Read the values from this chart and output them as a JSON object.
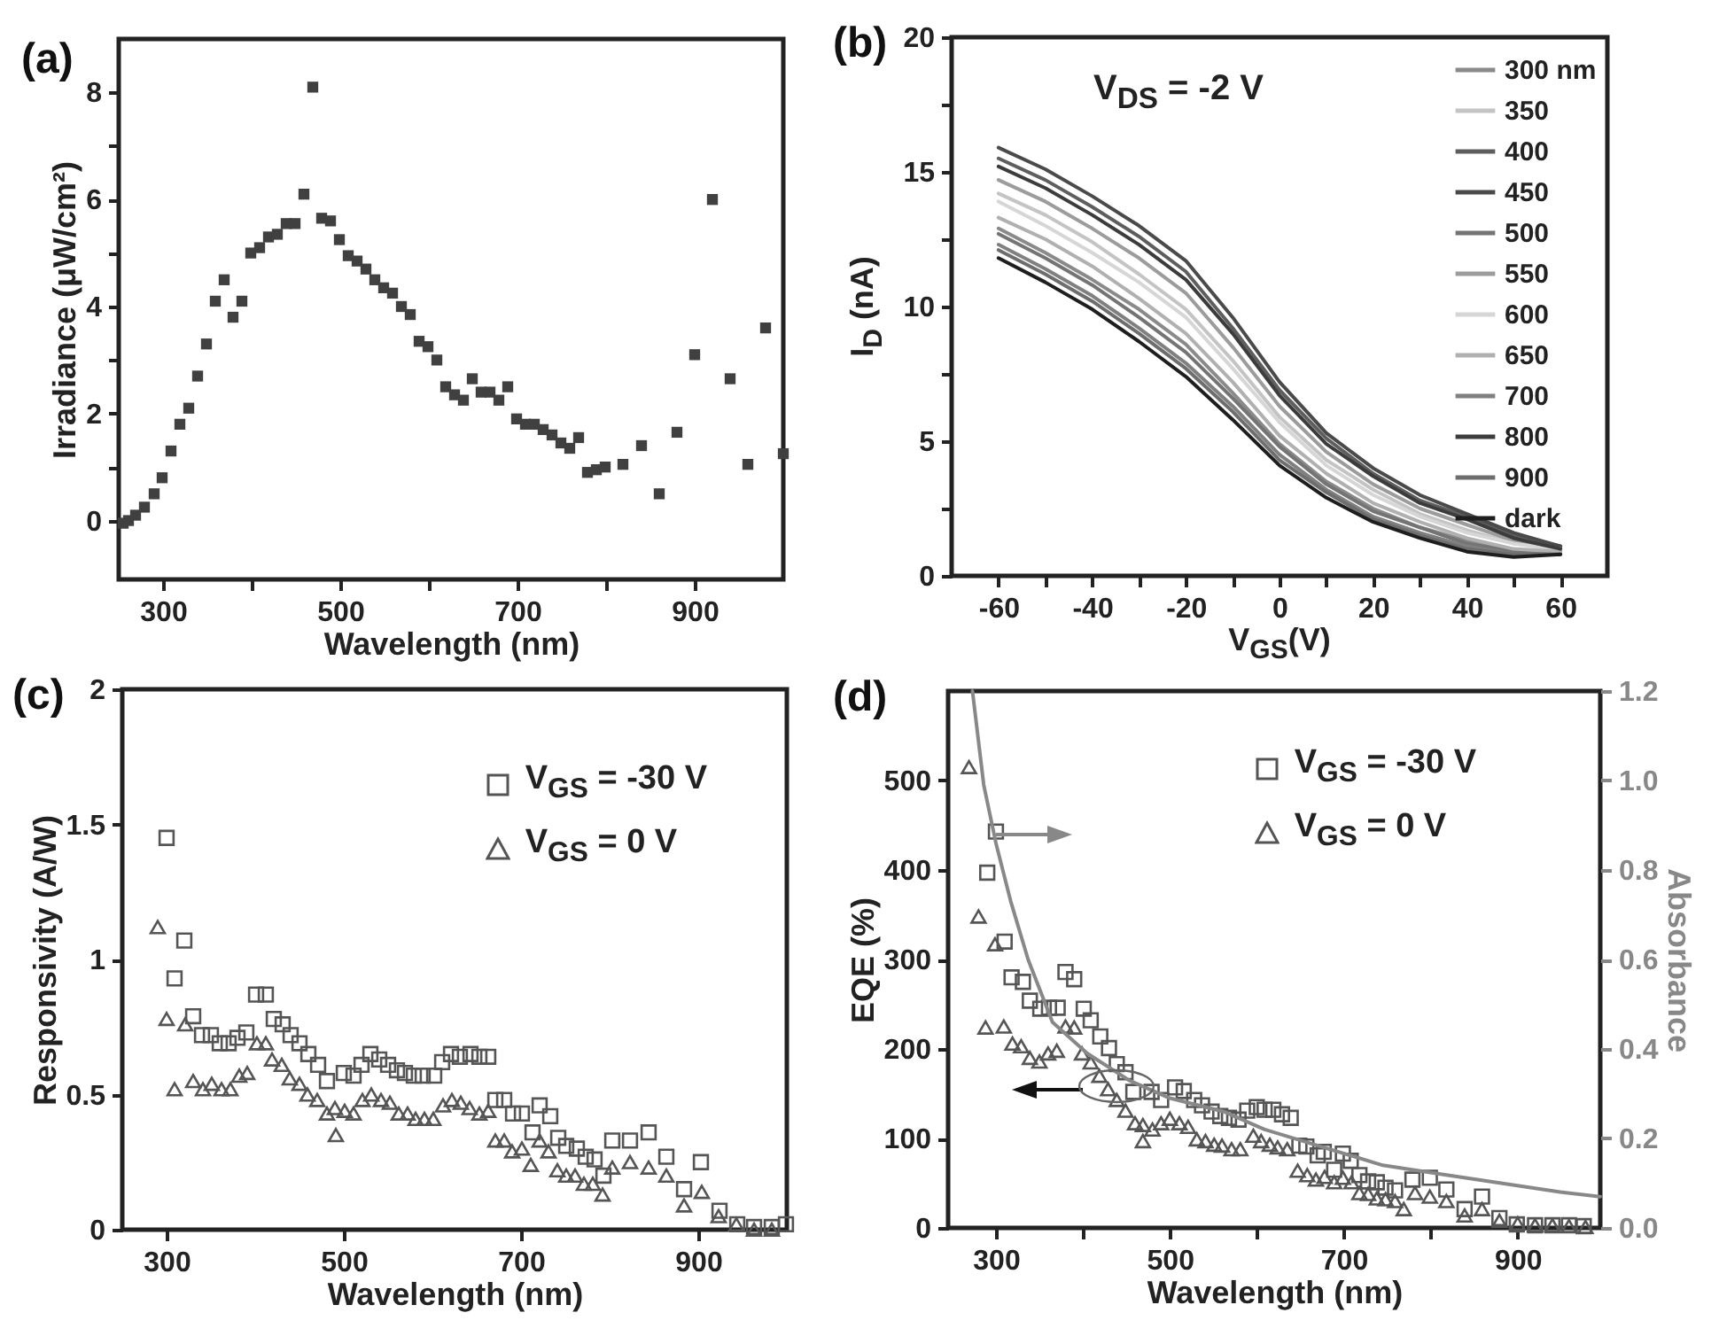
{
  "chart_data": [
    {
      "type": "scatter",
      "title": "(a)",
      "xlabel": "Wavelength (nm)",
      "ylabel": "Irradiance (μW/cm²)",
      "marker": "square",
      "color": "#404040",
      "x": [
        255,
        261,
        269,
        279,
        290,
        299,
        309,
        319,
        329,
        339,
        349,
        359,
        369,
        379,
        389,
        399,
        409,
        419,
        429,
        439,
        449,
        459,
        469,
        479,
        489,
        499,
        509,
        519,
        529,
        539,
        549,
        559,
        569,
        579,
        589,
        599,
        609,
        619,
        629,
        639,
        649,
        659,
        669,
        679,
        689,
        699,
        709,
        719,
        729,
        739,
        749,
        759,
        769,
        779,
        789,
        799,
        819,
        840,
        860,
        880,
        900,
        920,
        940,
        960,
        980,
        1000
      ],
      "values": [
        -0.05,
        0,
        0.1,
        0.25,
        0.5,
        0.8,
        1.3,
        1.8,
        2.1,
        2.7,
        3.3,
        4.1,
        4.5,
        3.8,
        4.1,
        5.0,
        5.1,
        5.3,
        5.35,
        5.55,
        5.55,
        6.1,
        8.1,
        5.65,
        5.6,
        5.25,
        4.95,
        4.85,
        4.7,
        4.5,
        4.35,
        4.25,
        4.0,
        3.85,
        3.35,
        3.25,
        3.0,
        2.5,
        2.35,
        2.25,
        2.65,
        2.4,
        2.4,
        2.25,
        2.5,
        1.9,
        1.8,
        1.8,
        1.7,
        1.6,
        1.45,
        1.35,
        1.55,
        0.9,
        0.95,
        1.0,
        1.05,
        1.4,
        0.5,
        1.65,
        3.1,
        6.0,
        2.65,
        1.05,
        3.6,
        1.25
      ],
      "xlim": [
        250,
        1000
      ],
      "xticks": [
        300,
        {
          "value": 400,
          "label": null
        },
        500,
        {
          "value": 600,
          "label": null
        },
        700,
        {
          "value": 800,
          "label": null
        },
        900
      ],
      "ylim": [
        -1.1,
        9
      ],
      "yticks": [
        0,
        {
          "value": 1,
          "label": null
        },
        2,
        {
          "value": 3,
          "label": null
        },
        4,
        {
          "value": 5,
          "label": null
        },
        6,
        {
          "value": 7,
          "label": null
        },
        8
      ]
    },
    {
      "type": "line",
      "title": "(b)",
      "xlabel": "V$_{GS}$(V)",
      "ylabel": "I$_{D}$ (nA)",
      "annotations": [
        "V$_{DS}$ = -2 V"
      ],
      "legend": "top right",
      "x": [
        -60,
        -50,
        -40,
        -30,
        -20,
        -10,
        0,
        10,
        20,
        30,
        40,
        50,
        60
      ],
      "xlim": [
        -70,
        70
      ],
      "xticks": [
        -60,
        {
          "value": -50,
          "label": null
        },
        -40,
        {
          "value": -30,
          "label": null
        },
        -20,
        {
          "value": -10,
          "label": null
        },
        0,
        {
          "value": 10,
          "label": null
        },
        20,
        {
          "value": 30,
          "label": null
        },
        40,
        {
          "value": 50,
          "label": null
        },
        60
      ],
      "ylim": [
        0,
        20
      ],
      "yticks": [
        0,
        {
          "value": 2.5,
          "label": null
        },
        5,
        {
          "value": 7.5,
          "label": null
        },
        10,
        {
          "value": 12.5,
          "label": null
        },
        15,
        {
          "value": 17.5,
          "label": null
        },
        20
      ],
      "series": [
        {
          "name": "300 nm",
          "color": "#8a8a8a",
          "values": [
            12.9,
            12.0,
            11.0,
            9.9,
            8.6,
            6.8,
            4.9,
            3.5,
            2.5,
            1.8,
            1.3,
            0.9,
            0.9
          ]
        },
        {
          "name": "350",
          "color": "#c4c4c4",
          "values": [
            14.2,
            13.4,
            12.4,
            11.2,
            9.9,
            8.0,
            5.9,
            4.3,
            3.2,
            2.3,
            1.7,
            1.2,
            1.0
          ]
        },
        {
          "name": "400",
          "color": "#5e5e5e",
          "values": [
            15.5,
            14.7,
            13.7,
            12.6,
            11.3,
            9.2,
            6.9,
            5.1,
            3.8,
            2.8,
            2.2,
            1.5,
            1.1
          ]
        },
        {
          "name": "450",
          "color": "#4a4a4a",
          "values": [
            15.9,
            15.1,
            14.1,
            13.0,
            11.7,
            9.6,
            7.2,
            5.3,
            4.0,
            3.0,
            2.3,
            1.6,
            1.1
          ]
        },
        {
          "name": "500",
          "color": "#747474",
          "values": [
            12.7,
            11.8,
            10.8,
            9.6,
            8.3,
            6.6,
            4.8,
            3.4,
            2.4,
            1.8,
            1.2,
            0.9,
            0.9
          ]
        },
        {
          "name": "550",
          "color": "#9c9c9c",
          "values": [
            14.7,
            13.9,
            12.9,
            11.8,
            10.5,
            8.5,
            6.3,
            4.6,
            3.4,
            2.5,
            1.9,
            1.3,
            1.0
          ]
        },
        {
          "name": "600",
          "color": "#d6d6d6",
          "values": [
            13.9,
            13.0,
            12.0,
            10.9,
            9.6,
            7.7,
            5.7,
            4.1,
            3.0,
            2.2,
            1.6,
            1.2,
            0.95
          ]
        },
        {
          "name": "650",
          "color": "#b0b0b0",
          "values": [
            13.3,
            12.5,
            11.5,
            10.3,
            9.0,
            7.2,
            5.2,
            3.8,
            2.7,
            2.0,
            1.4,
            1.0,
            0.9
          ]
        },
        {
          "name": "700",
          "color": "#808080",
          "values": [
            12.3,
            11.4,
            10.4,
            9.2,
            7.9,
            6.3,
            4.5,
            3.2,
            2.2,
            1.6,
            1.1,
            0.8,
            0.8
          ]
        },
        {
          "name": "800",
          "color": "#3c3c3c",
          "values": [
            15.2,
            14.4,
            13.4,
            12.3,
            11.0,
            9.0,
            6.7,
            4.9,
            3.7,
            2.7,
            2.1,
            1.4,
            1.0
          ]
        },
        {
          "name": "900",
          "color": "#6e6e6e",
          "values": [
            12.1,
            11.2,
            10.2,
            9.0,
            7.7,
            6.1,
            4.3,
            3.1,
            2.1,
            1.5,
            1.0,
            0.8,
            0.8
          ]
        },
        {
          "name": "dark",
          "color": "#1e1e1e",
          "values": [
            11.8,
            10.9,
            9.9,
            8.7,
            7.4,
            5.8,
            4.1,
            2.9,
            2.0,
            1.4,
            0.9,
            0.7,
            0.8
          ]
        }
      ]
    },
    {
      "type": "scatter",
      "title": "(c)",
      "xlabel": "Wavelength (nm)",
      "ylabel": "Responsivity (A/W)",
      "legend": "top right",
      "xlim": [
        250,
        1000
      ],
      "xticks": [
        300,
        500,
        700,
        900
      ],
      "ylim": [
        0,
        2
      ],
      "yticks": [
        0,
        0.5,
        1,
        1.5,
        2
      ],
      "series": [
        {
          "name": "V$_{GS}$ = -30 V",
          "color": "#555555",
          "marker": "square",
          "x": [
            300,
            309,
            320,
            330,
            340,
            350,
            360,
            370,
            380,
            390,
            401,
            412,
            421,
            431,
            440,
            450,
            460,
            471,
            481,
            500,
            511,
            520,
            530,
            540,
            550,
            560,
            569,
            579,
            589,
            602,
            611,
            621,
            631,
            643,
            653,
            663,
            671,
            681,
            691,
            701,
            713,
            721,
            733,
            742,
            751,
            763,
            773,
            783,
            793,
            803,
            823,
            844,
            864,
            884,
            903,
            924,
            944,
            963,
            983,
            999
          ],
          "values": [
            1.45,
            0.93,
            1.07,
            0.79,
            0.72,
            0.72,
            0.69,
            0.69,
            0.71,
            0.73,
            0.87,
            0.87,
            0.78,
            0.76,
            0.72,
            0.69,
            0.65,
            0.61,
            0.55,
            0.58,
            0.57,
            0.61,
            0.65,
            0.63,
            0.61,
            0.59,
            0.58,
            0.57,
            0.57,
            0.57,
            0.62,
            0.65,
            0.64,
            0.65,
            0.64,
            0.64,
            0.48,
            0.48,
            0.43,
            0.43,
            0.36,
            0.46,
            0.42,
            0.34,
            0.31,
            0.3,
            0.27,
            0.26,
            0.2,
            0.33,
            0.33,
            0.36,
            0.27,
            0.15,
            0.25,
            0.07,
            0.02,
            0.01,
            0.01,
            0.02
          ]
        },
        {
          "name": "V$_{GS}$ = 0 V",
          "color": "#555555",
          "marker": "triangle",
          "x": [
            290,
            300,
            309,
            321,
            330,
            341,
            351,
            362,
            372,
            382,
            391,
            402,
            412,
            419,
            430,
            439,
            450,
            459,
            470,
            481,
            490,
            491,
            501,
            511,
            521,
            531,
            542,
            552,
            562,
            572,
            581,
            591,
            601,
            612,
            622,
            632,
            642,
            653,
            663,
            671,
            681,
            690,
            701,
            711,
            721,
            731,
            741,
            751,
            761,
            771,
            781,
            792,
            803,
            823,
            844,
            864,
            884,
            904,
            923,
            943,
            963,
            983
          ],
          "values": [
            1.12,
            0.78,
            0.52,
            0.76,
            0.55,
            0.52,
            0.54,
            0.52,
            0.52,
            0.57,
            0.58,
            0.69,
            0.69,
            0.63,
            0.61,
            0.56,
            0.54,
            0.5,
            0.48,
            0.43,
            0.45,
            0.35,
            0.44,
            0.43,
            0.48,
            0.5,
            0.48,
            0.47,
            0.43,
            0.43,
            0.41,
            0.41,
            0.41,
            0.46,
            0.48,
            0.47,
            0.45,
            0.43,
            0.44,
            0.33,
            0.33,
            0.29,
            0.3,
            0.24,
            0.33,
            0.29,
            0.22,
            0.2,
            0.2,
            0.17,
            0.17,
            0.13,
            0.23,
            0.25,
            0.23,
            0.2,
            0.09,
            0.14,
            0.05,
            0.02,
            0.0,
            0.0
          ]
        }
      ]
    },
    {
      "type": "scatter",
      "title": "(d)",
      "xlabel": "Wavelength (nm)",
      "ylabel": "EQE (%)",
      "y2label": "Absorbance",
      "legend": "top right",
      "xlim": [
        245,
        995
      ],
      "xticks": [
        300,
        {
          "value": 400,
          "label": null
        },
        500,
        {
          "value": 600,
          "label": null
        },
        700,
        {
          "value": 800,
          "label": null
        },
        900
      ],
      "ylim": [
        0,
        600
      ],
      "yticks": [
        0,
        100,
        200,
        300,
        400,
        500
      ],
      "y2lim": [
        0,
        1.2
      ],
      "y2ticks": [
        {
          "value": 0,
          "label": "0.0"
        },
        0.2,
        0.4,
        0.6,
        0.8,
        {
          "value": 1,
          "label": "1.0"
        },
        1.2
      ],
      "series": [
        {
          "name": "V$_{GS}$ = -30 V",
          "color": "#555555",
          "marker": "square",
          "x": [
            290,
            300,
            310,
            318,
            331,
            339,
            351,
            361,
            371,
            380,
            390,
            401,
            409,
            420,
            430,
            439,
            449,
            458,
            479,
            490,
            506,
            516,
            528,
            537,
            548,
            558,
            568,
            579,
            589,
            600,
            609,
            619,
            629,
            639,
            649,
            657,
            670,
            677,
            689,
            699,
            708,
            718,
            728,
            738,
            748,
            759,
            779,
            799,
            818,
            839,
            859,
            879,
            899,
            920,
            940,
            959,
            976
          ],
          "values": [
            397,
            443,
            320,
            280,
            275,
            254,
            245,
            246,
            246,
            286,
            278,
            245,
            232,
            214,
            201,
            183,
            174,
            152,
            152,
            143,
            157,
            153,
            143,
            137,
            130,
            125,
            123,
            121,
            131,
            135,
            132,
            132,
            127,
            123,
            92,
            91,
            81,
            85,
            65,
            83,
            75,
            59,
            52,
            51,
            45,
            42,
            54,
            56,
            43,
            21,
            35,
            11,
            4,
            3,
            3,
            3,
            2
          ]
        },
        {
          "name": "V$_{GS}$ = 0 V",
          "color": "#555555",
          "marker": "triangle",
          "x": [
            269,
            280,
            288,
            299,
            309,
            319,
            329,
            339,
            350,
            360,
            370,
            380,
            390,
            399,
            409,
            419,
            429,
            439,
            449,
            460,
            469,
            469,
            480,
            490,
            500,
            511,
            521,
            531,
            541,
            551,
            560,
            571,
            581,
            596,
            605,
            615,
            624,
            635,
            647,
            658,
            668,
            678,
            689,
            699,
            709,
            718,
            728,
            738,
            748,
            759,
            769,
            782,
            799,
            818,
            839,
            859,
            879,
            900,
            920,
            940,
            959,
            978
          ],
          "values": [
            515,
            348,
            224,
            317,
            225,
            206,
            203,
            190,
            186,
            195,
            198,
            225,
            224,
            195,
            185,
            170,
            155,
            143,
            131,
            117,
            97,
            115,
            110,
            117,
            122,
            117,
            113,
            99,
            97,
            93,
            92,
            88,
            88,
            103,
            97,
            93,
            90,
            88,
            64,
            59,
            54,
            57,
            51,
            56,
            51,
            39,
            38,
            33,
            32,
            30,
            21,
            39,
            35,
            30,
            14,
            21,
            8,
            5,
            3,
            3,
            2,
            1
          ]
        },
        {
          "type": "line",
          "axis": "y2",
          "color": "#888888",
          "x": [
            273,
            286,
            300,
            317,
            337,
            365,
            405,
            453,
            500,
            562,
            609,
            677,
            745,
            813,
            881,
            949,
            995
          ],
          "values": [
            1.2,
            0.99,
            0.86,
            0.73,
            0.6,
            0.46,
            0.39,
            0.33,
            0.29,
            0.26,
            0.22,
            0.18,
            0.14,
            0.12,
            0.1,
            0.08,
            0.07
          ]
        }
      ]
    }
  ]
}
